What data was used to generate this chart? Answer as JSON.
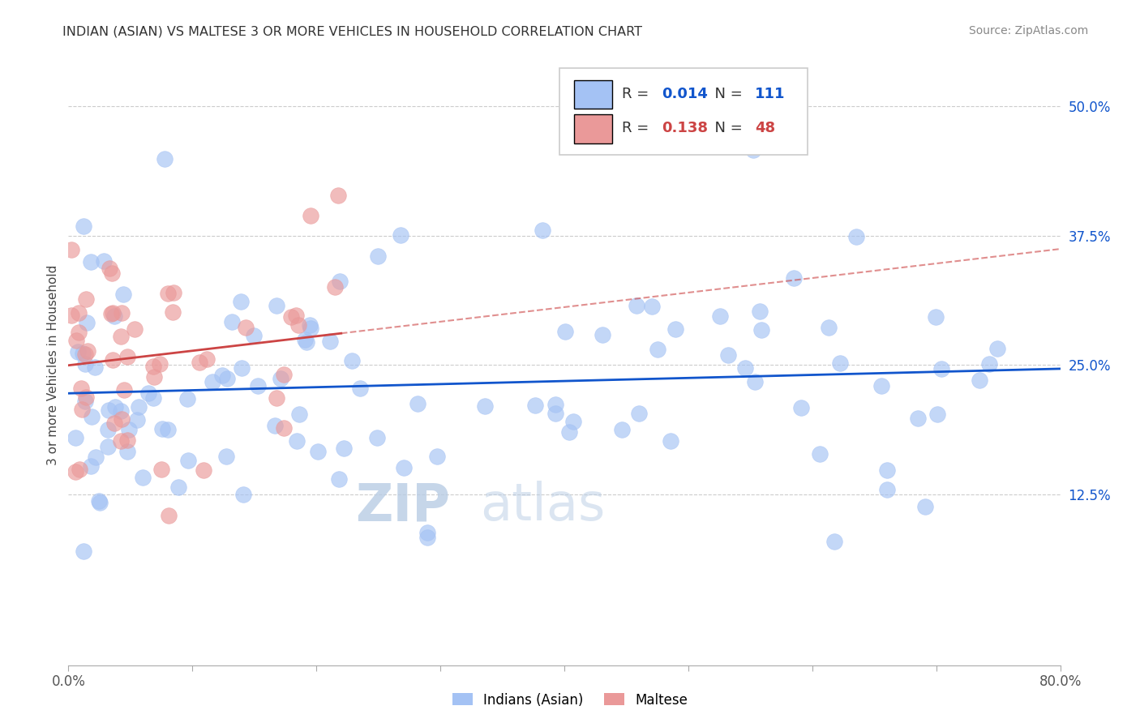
{
  "title": "INDIAN (ASIAN) VS MALTESE 3 OR MORE VEHICLES IN HOUSEHOLD CORRELATION CHART",
  "source": "Source: ZipAtlas.com",
  "ylabel": "3 or more Vehicles in Household",
  "xmin": 0.0,
  "xmax": 0.8,
  "ymin": -0.04,
  "ymax": 0.54,
  "r_indian": 0.014,
  "n_indian": 111,
  "r_maltese": 0.138,
  "n_maltese": 48,
  "color_indian": "#a4c2f4",
  "color_maltese": "#ea9999",
  "color_indian_line": "#1155cc",
  "color_maltese_line": "#cc4444",
  "legend_label_indian": "Indians (Asian)",
  "legend_label_maltese": "Maltese",
  "watermark_zip": "ZIP",
  "watermark_atlas": "atlas",
  "seed": 42
}
